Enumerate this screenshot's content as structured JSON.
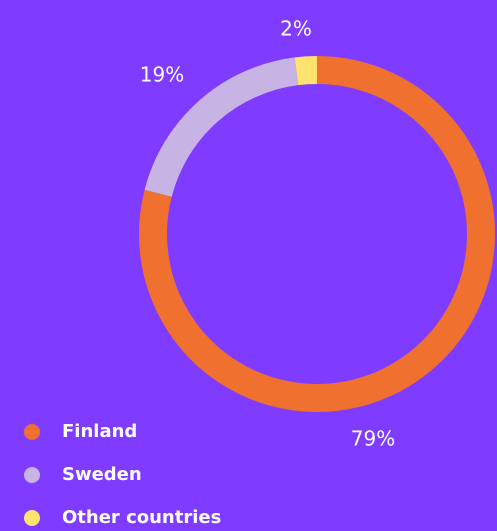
{
  "chart_data": {
    "type": "donut",
    "categories": [
      "Finland",
      "Sweden",
      "Other countries"
    ],
    "values": [
      79,
      19,
      2
    ],
    "value_labels": [
      "79%",
      "19%",
      "2%"
    ],
    "colors": [
      "#f07030",
      "#c8b4e4",
      "#ffe36e"
    ],
    "legend": "bottom-left"
  }
}
